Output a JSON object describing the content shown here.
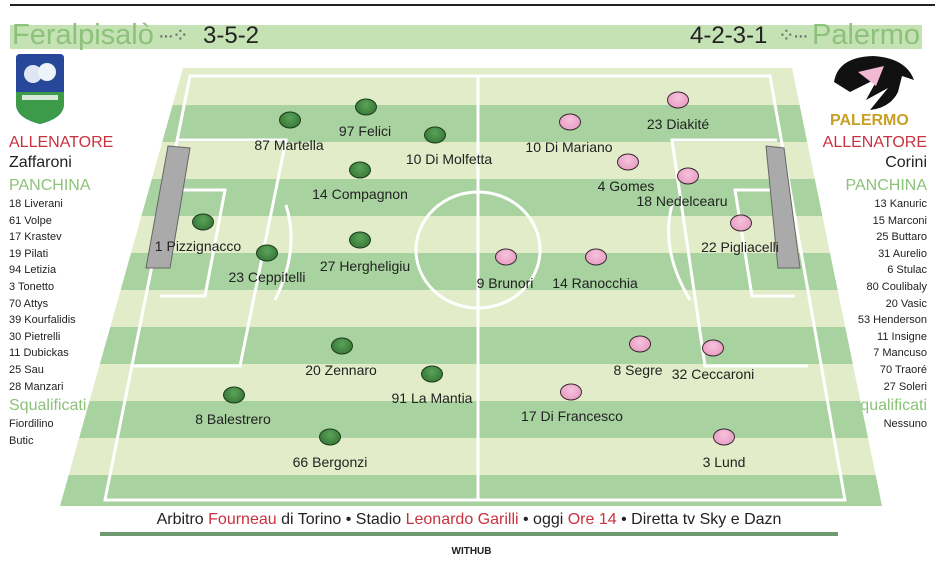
{
  "home": {
    "name": "Feralpisalò",
    "formation": "3-5-2",
    "coach_label": "ALLENATORE",
    "coach": "Zaffaroni",
    "bench_label": "PANCHINA",
    "bench": [
      "18 Liverani",
      "61 Volpe",
      "17 Krastev",
      "19 Pilati",
      "94 Letizia",
      "3 Tonetto",
      "70 Attys",
      "39 Kourfalidis",
      "30 Pietrelli",
      "11 Dubickas",
      "25 Sau",
      "28 Manzari"
    ],
    "suspended_label": "Squalificati",
    "suspended": [
      "Fiordilino",
      "Butic"
    ],
    "logo_text": "FERALPISALÒ",
    "color": "#2f6e2f",
    "players": [
      "87 Martella",
      "97 Felici",
      "10 Di Molfetta",
      "14 Compagnon",
      "1 Pizzignacco",
      "23 Ceppitelli",
      "27 Hergheligiu",
      "20 Zennaro",
      "91 La Mantia",
      "8 Balestrero",
      "66 Bergonzi"
    ]
  },
  "away": {
    "name": "Palermo",
    "formation": "4-2-3-1",
    "coach_label": "ALLENATORE",
    "coach": "Corini",
    "bench_label": "PANCHINA",
    "bench": [
      "13 Kanuric",
      "15 Marconi",
      "25 Buttaro",
      "31 Aurelio",
      "6 Stulac",
      "80 Coulibaly",
      "20 Vasic",
      "53 Henderson",
      "11 Insigne",
      "7 Mancuso",
      "70 Traoré",
      "27 Soleri"
    ],
    "suspended_label": "Squalificati",
    "suspended": [
      "Nessuno"
    ],
    "logo_text": "PALERMO",
    "color": "#e594bd",
    "players": [
      "23 Diakité",
      "10 Di Mariano",
      "4 Gomes",
      "18 Nedelcearu",
      "22 Pigliacelli",
      "9 Brunori",
      "14 Ranocchia",
      "8 Segre",
      "32 Ceccaroni",
      "17 Di Francesco",
      "3 Lund"
    ]
  },
  "footer": {
    "p1": "Arbitro ",
    "referee": "Fourneau",
    "p2": " di Torino • Stadio ",
    "stadium": "Leonardo Garilli",
    "p3": " • oggi ",
    "time": "Ore 14",
    "p4": " • Diretta tv Sky e Dazn"
  },
  "credit": "WITHUB",
  "colors": {
    "accent_red": "#c8323f",
    "accent_green": "#8cc27a",
    "pitch_light": "#e2ecc9",
    "pitch_dark": "#a8d29f"
  }
}
